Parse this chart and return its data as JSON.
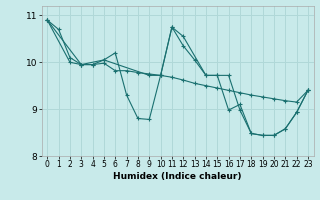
{
  "xlabel": "Humidex (Indice chaleur)",
  "bg_color": "#c8eaea",
  "grid_color": "#b0d8d8",
  "line_color": "#1a7070",
  "xlim": [
    -0.5,
    23.5
  ],
  "ylim": [
    8,
    11.2
  ],
  "yticks": [
    8,
    9,
    10,
    11
  ],
  "ytick_labels": [
    "8",
    "9",
    "10",
    "11"
  ],
  "xticks": [
    0,
    1,
    2,
    3,
    4,
    5,
    6,
    7,
    8,
    9,
    10,
    11,
    12,
    13,
    14,
    15,
    16,
    17,
    18,
    19,
    20,
    21,
    22,
    23
  ],
  "lines": [
    {
      "x": [
        0,
        1,
        2,
        3,
        4,
        5,
        6,
        7,
        8,
        9,
        10,
        11,
        12,
        13,
        14,
        15,
        16,
        17,
        18,
        19,
        20,
        21,
        22,
        23
      ],
      "y": [
        10.9,
        10.7,
        10.1,
        9.95,
        9.95,
        9.98,
        9.82,
        9.82,
        9.78,
        9.75,
        9.72,
        9.68,
        9.62,
        9.55,
        9.5,
        9.45,
        9.4,
        9.35,
        9.3,
        9.26,
        9.22,
        9.18,
        9.15,
        9.4
      ]
    },
    {
      "x": [
        0,
        3,
        4,
        5,
        6,
        7,
        8,
        9,
        10,
        11,
        12,
        13,
        14,
        15,
        16,
        17,
        18,
        19,
        20,
        21,
        22,
        23
      ],
      "y": [
        10.9,
        9.95,
        9.95,
        10.05,
        10.2,
        9.3,
        8.8,
        8.78,
        9.72,
        10.75,
        10.35,
        10.05,
        9.72,
        9.72,
        8.98,
        9.1,
        8.48,
        8.44,
        8.44,
        8.58,
        8.93,
        9.4
      ]
    },
    {
      "x": [
        0,
        2,
        3,
        5,
        9,
        10,
        11,
        12,
        14,
        15,
        16,
        17,
        18,
        19,
        20,
        21,
        22,
        23
      ],
      "y": [
        10.9,
        10.0,
        9.95,
        10.05,
        9.72,
        9.72,
        10.75,
        10.55,
        9.72,
        9.72,
        9.72,
        8.98,
        8.48,
        8.44,
        8.44,
        8.58,
        8.93,
        9.4
      ]
    }
  ]
}
